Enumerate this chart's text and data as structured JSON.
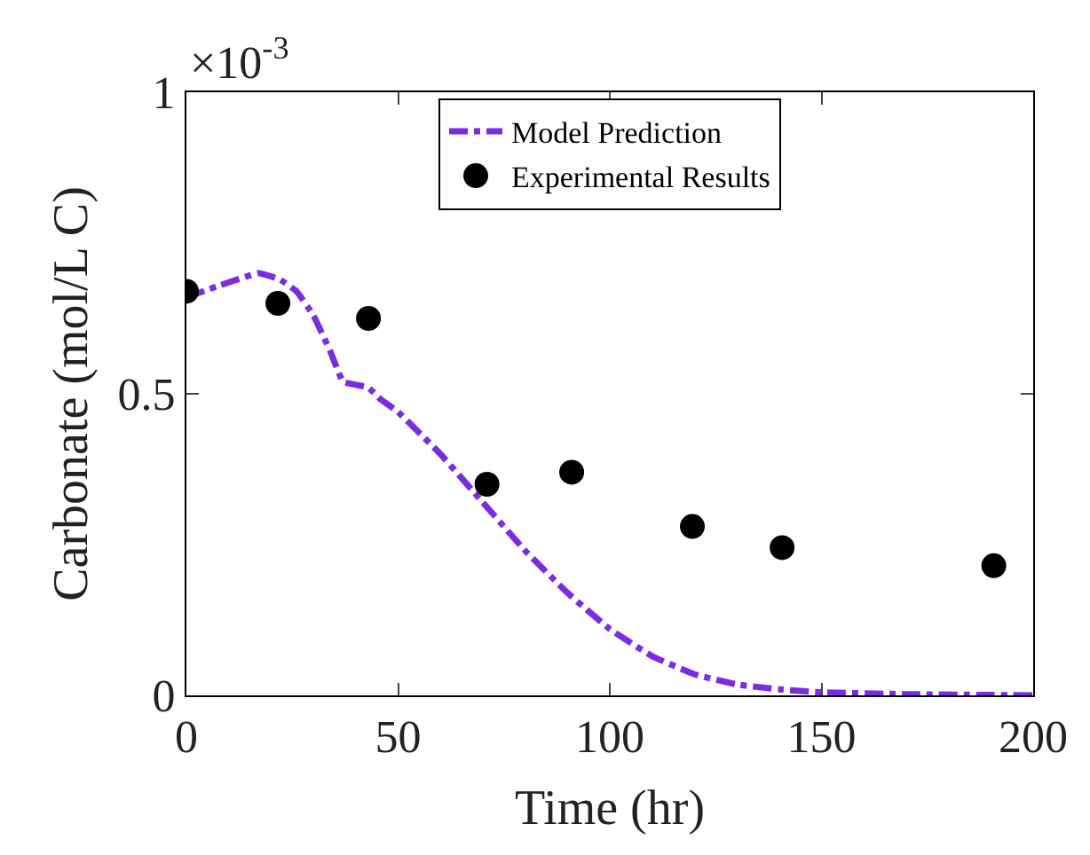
{
  "chart_data": {
    "type": "line",
    "xlabel": "Time (hr)",
    "ylabel": "Carbonate (mol/L C)",
    "annotations": [
      "×10$^{-3}$"
    ],
    "xlim": [
      0,
      200
    ],
    "xticks": [
      0,
      50,
      100,
      150,
      200
    ],
    "ylim": [
      0,
      1
    ],
    "yticks": [
      0,
      0.5,
      1
    ],
    "legend": "top",
    "series": [
      {
        "name": "Model Prediction",
        "type": "line",
        "color": "#7b2be2",
        "line_style": "dashdot",
        "marker": "none",
        "x": [
          0,
          8,
          17,
          22,
          26,
          30,
          34,
          37,
          40,
          43,
          46,
          50,
          60,
          70,
          80,
          90,
          100,
          110,
          120,
          130,
          140,
          150,
          170,
          200
        ],
        "values": [
          0.66,
          0.68,
          0.7,
          0.69,
          0.67,
          0.63,
          0.57,
          0.52,
          0.515,
          0.51,
          0.49,
          0.47,
          0.4,
          0.32,
          0.24,
          0.17,
          0.11,
          0.065,
          0.035,
          0.018,
          0.01,
          0.005,
          0.002,
          0
        ]
      },
      {
        "name": "Experimental Results",
        "type": "scatter",
        "color": "#000000",
        "marker": "circle",
        "x": [
          0,
          21.6,
          43,
          71,
          91,
          119.5,
          140.7,
          190.7
        ],
        "values": [
          0.67,
          0.65,
          0.625,
          0.35,
          0.37,
          0.28,
          0.245,
          0.215
        ]
      }
    ]
  }
}
